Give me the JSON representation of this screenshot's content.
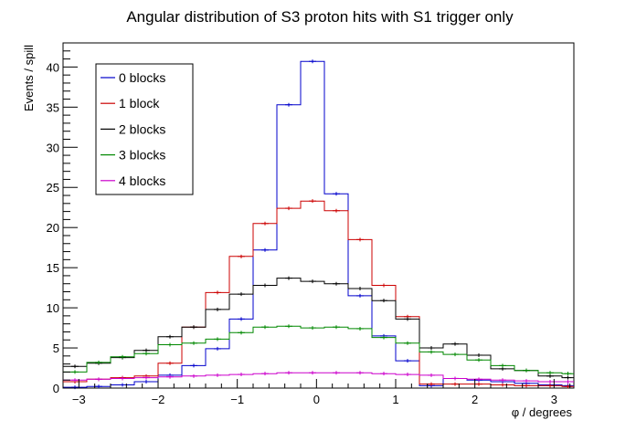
{
  "chart_data": {
    "type": "line",
    "title": "Angular distribution of S3 proton hits with S1 trigger only",
    "xlabel": "φ / degrees",
    "ylabel": "Events / spill",
    "xlim": [
      -3.2,
      3.25
    ],
    "ylim": [
      0,
      43
    ],
    "xticks": [
      -3,
      -2,
      -1,
      0,
      1,
      2,
      3
    ],
    "yticks": [
      0,
      5,
      10,
      15,
      20,
      25,
      30,
      35,
      40
    ],
    "grid": false,
    "legend_position": "top-left",
    "bin_edges": [
      -3.2,
      -2.9,
      -2.6,
      -2.3,
      -2.0,
      -1.7,
      -1.4,
      -1.1,
      -0.8,
      -0.5,
      -0.2,
      0.1,
      0.4,
      0.7,
      1.0,
      1.3,
      1.6,
      1.9,
      2.2,
      2.5,
      2.8,
      3.1,
      3.25
    ],
    "series": [
      {
        "name": "0 blocks",
        "color": "#0000cc",
        "values": [
          0.1,
          0.2,
          0.4,
          0.8,
          1.6,
          2.8,
          4.9,
          8.6,
          17.2,
          35.3,
          40.7,
          24.2,
          11.5,
          6.5,
          3.4,
          0.3,
          1.2,
          1.0,
          0.8,
          0.6,
          0.4,
          0.3
        ]
      },
      {
        "name": "1 block",
        "color": "#cc0000",
        "values": [
          0.8,
          1.1,
          1.3,
          1.5,
          3.1,
          7.6,
          11.9,
          16.4,
          20.5,
          22.4,
          23.3,
          22.1,
          18.5,
          12.8,
          8.9,
          0.5,
          0.5,
          0.5,
          0.4,
          0.3,
          0.3,
          0.2
        ]
      },
      {
        "name": "2 blocks",
        "color": "#000000",
        "values": [
          2.7,
          3.1,
          3.8,
          4.7,
          6.4,
          7.6,
          9.8,
          11.7,
          12.8,
          13.7,
          13.3,
          13.0,
          12.4,
          10.9,
          8.6,
          5.0,
          5.5,
          4.1,
          2.4,
          2.2,
          1.5,
          1.3
        ]
      },
      {
        "name": "3 blocks",
        "color": "#008800",
        "values": [
          2.0,
          3.2,
          3.9,
          4.3,
          5.4,
          5.6,
          6.1,
          6.9,
          7.6,
          7.7,
          7.5,
          7.6,
          7.4,
          6.3,
          5.6,
          4.5,
          4.2,
          3.5,
          2.8,
          2.2,
          1.9,
          1.8
        ]
      },
      {
        "name": "4 blocks",
        "color": "#cc00cc",
        "values": [
          1.0,
          1.1,
          1.2,
          1.3,
          1.4,
          1.5,
          1.6,
          1.7,
          1.8,
          1.9,
          1.9,
          1.9,
          1.9,
          1.8,
          1.7,
          1.6,
          1.2,
          1.1,
          1.0,
          0.9,
          0.8,
          0.8
        ]
      }
    ]
  }
}
